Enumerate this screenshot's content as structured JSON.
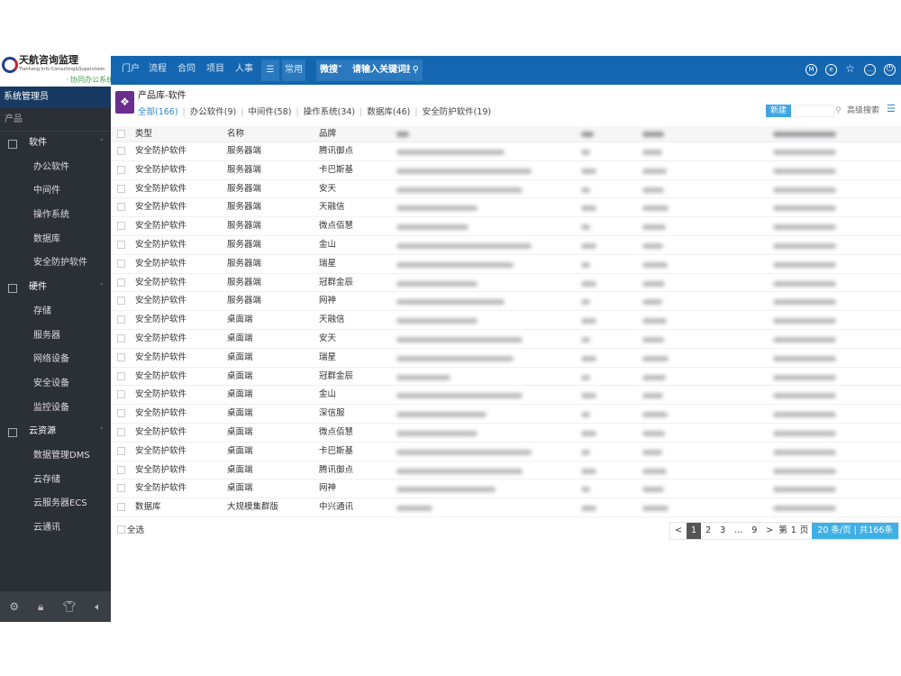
{
  "logo": {
    "name": "天航咨询监理",
    "english": "Tianhang Info Consulting&Supervision",
    "subtitle": "· 协同办公系统登录"
  },
  "topnav": {
    "items": [
      "门户",
      "流程",
      "合同",
      "项目",
      "人事"
    ],
    "menu_icon": "hamburger-icon",
    "common": "常用",
    "search_type": "微搜",
    "search_placeholder": "请输入关键词搜索",
    "right_icons": [
      "m-circle-icon",
      "e-circle-icon",
      "star-icon",
      "chat-icon",
      "power-icon"
    ]
  },
  "sidebar": {
    "user": "系统管理员",
    "section": "产品",
    "groups": [
      {
        "label": "软件",
        "items": [
          "办公软件",
          "中间件",
          "操作系统",
          "数据库",
          "安全防护软件"
        ]
      },
      {
        "label": "硬件",
        "items": [
          "存储",
          "服务器",
          "网络设备",
          "安全设备",
          "监控设备"
        ]
      },
      {
        "label": "云资源",
        "items": [
          "数据管理DMS",
          "云存储",
          "云服务器ECS",
          "云通讯"
        ]
      }
    ],
    "bottom_icons": [
      "gear-icon",
      "lock-icon",
      "shirt-icon",
      "speaker-icon"
    ]
  },
  "page": {
    "title": "产品库-软件",
    "tabs": [
      "全部(166)",
      "办公软件(9)",
      "中间件(58)",
      "操作系统(34)",
      "数据库(46)",
      "安全防护软件(19)"
    ],
    "active_tab": 0,
    "new_button": "新建",
    "search_value": "",
    "advanced_search": "高级搜索"
  },
  "table": {
    "headers": [
      "类型",
      "名称",
      "品牌"
    ],
    "rows": [
      [
        "安全防护软件",
        "服务器端",
        "腾讯御点"
      ],
      [
        "安全防护软件",
        "服务器端",
        "卡巴斯基"
      ],
      [
        "安全防护软件",
        "服务器端",
        "安天"
      ],
      [
        "安全防护软件",
        "服务器端",
        "天融信"
      ],
      [
        "安全防护软件",
        "服务器端",
        "微点佰慧"
      ],
      [
        "安全防护软件",
        "服务器端",
        "金山"
      ],
      [
        "安全防护软件",
        "服务器端",
        "瑞星"
      ],
      [
        "安全防护软件",
        "服务器端",
        "冠群金辰"
      ],
      [
        "安全防护软件",
        "服务器端",
        "网神"
      ],
      [
        "安全防护软件",
        "桌面端",
        "天融信"
      ],
      [
        "安全防护软件",
        "桌面端",
        "安天"
      ],
      [
        "安全防护软件",
        "桌面端",
        "瑞星"
      ],
      [
        "安全防护软件",
        "桌面端",
        "冠群金辰"
      ],
      [
        "安全防护软件",
        "桌面端",
        "金山"
      ],
      [
        "安全防护软件",
        "桌面端",
        "深信服"
      ],
      [
        "安全防护软件",
        "桌面端",
        "微点佰慧"
      ],
      [
        "安全防护软件",
        "桌面端",
        "卡巴斯基"
      ],
      [
        "安全防护软件",
        "桌面端",
        "腾讯御点"
      ],
      [
        "安全防护软件",
        "桌面端",
        "网神"
      ],
      [
        "数据库",
        "大规模集群版",
        "中兴通讯"
      ]
    ]
  },
  "footer": {
    "select_all": "全选",
    "pager": {
      "prev": "<",
      "pages": [
        "1",
        "2",
        "3",
        "...",
        "9"
      ],
      "current": "1",
      "next": ">",
      "goto_prefix": "第",
      "goto_value": "1",
      "goto_suffix": "页",
      "page_size": "20 条/页 | 共166条"
    }
  },
  "colors": {
    "topbar": "#1466b0",
    "sidebar": "#2b2f36",
    "accent": "#3fa6e3"
  }
}
